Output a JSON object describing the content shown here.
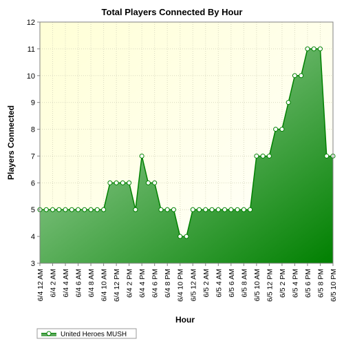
{
  "chart_data": {
    "type": "area",
    "title": "Total Players Connected By Hour",
    "xlabel": "Hour",
    "ylabel": "Players Connected",
    "ylim": [
      3,
      12
    ],
    "yticks": [
      3,
      4,
      5,
      6,
      7,
      8,
      9,
      10,
      11,
      12
    ],
    "grid": true,
    "legend_position": "bottom-left",
    "colors": {
      "series": "#008000",
      "plot_background": "#ffffe0",
      "grid": "#d9d9c0"
    },
    "x": [
      "6/4 12 AM",
      "6/4 1 AM",
      "6/4 2 AM",
      "6/4 3 AM",
      "6/4 4 AM",
      "6/4 5 AM",
      "6/4 6 AM",
      "6/4 7 AM",
      "6/4 8 AM",
      "6/4 9 AM",
      "6/4 10 AM",
      "6/4 11 AM",
      "6/4 12 PM",
      "6/4 1 PM",
      "6/4 2 PM",
      "6/4 3 PM",
      "6/4 4 PM",
      "6/4 5 PM",
      "6/4 6 PM",
      "6/4 7 PM",
      "6/4 8 PM",
      "6/4 9 PM",
      "6/4 10 PM",
      "6/4 11 PM",
      "6/5 12 AM",
      "6/5 1 AM",
      "6/5 2 AM",
      "6/5 3 AM",
      "6/5 4 AM",
      "6/5 5 AM",
      "6/5 6 AM",
      "6/5 7 AM",
      "6/5 8 AM",
      "6/5 9 AM",
      "6/5 10 AM",
      "6/5 11 AM",
      "6/5 12 PM",
      "6/5 1 PM",
      "6/5 2 PM",
      "6/5 3 PM",
      "6/5 4 PM",
      "6/5 5 PM",
      "6/5 6 PM",
      "6/5 7 PM",
      "6/5 8 PM",
      "6/5 9 PM",
      "6/5 10 PM"
    ],
    "xticks": [
      "6/4 12 AM",
      "6/4 2 AM",
      "6/4 4 AM",
      "6/4 6 AM",
      "6/4 8 AM",
      "6/4 10 AM",
      "6/4 12 PM",
      "6/4 2 PM",
      "6/4 4 PM",
      "6/4 6 PM",
      "6/4 8 PM",
      "6/4 10 PM",
      "6/5 12 AM",
      "6/5 2 AM",
      "6/5 4 AM",
      "6/5 6 AM",
      "6/5 8 AM",
      "6/5 10 AM",
      "6/5 12 PM",
      "6/5 2 PM",
      "6/5 4 PM",
      "6/5 6 PM",
      "6/5 8 PM",
      "6/5 10 PM"
    ],
    "series": [
      {
        "name": "United Heroes MUSH",
        "values": [
          5,
          5,
          5,
          5,
          5,
          5,
          5,
          5,
          5,
          5,
          5,
          6,
          6,
          6,
          6,
          5,
          7,
          6,
          6,
          5,
          5,
          5,
          4,
          4,
          5,
          5,
          5,
          5,
          5,
          5,
          5,
          5,
          5,
          5,
          7,
          7,
          7,
          8,
          8,
          9,
          10,
          10,
          11,
          11,
          11,
          7,
          7
        ]
      }
    ]
  }
}
